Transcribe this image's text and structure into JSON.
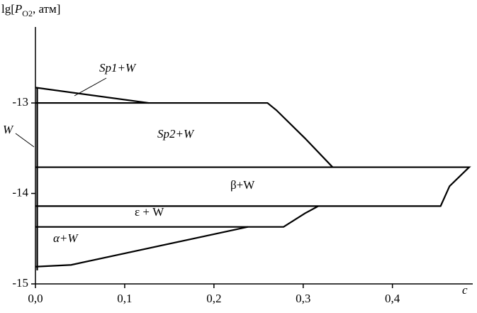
{
  "chart_data": {
    "type": "line",
    "y_label": [
      "lg[",
      "P",
      "O2",
      ", атм]"
    ],
    "x_label": "c",
    "xlim": [
      0,
      0.49
    ],
    "ylim": [
      -15,
      -12.16
    ],
    "xticks": [
      {
        "value": 0,
        "label": "0,0"
      },
      {
        "value": 0.1,
        "label": "0,1"
      },
      {
        "value": 0.2,
        "label": "0,2"
      },
      {
        "value": 0.3,
        "label": "0,3"
      },
      {
        "value": 0.4,
        "label": "0,4"
      }
    ],
    "yticks": [
      -15,
      -14,
      -13
    ],
    "color": "#000000",
    "lines": [
      {
        "x": [
          0,
          0.127
        ],
        "y": [
          -12.83,
          -13.0
        ]
      },
      {
        "x": [
          0,
          0.26,
          0.27,
          0.302,
          0.333
        ],
        "y": [
          -13.0,
          -13.0,
          -13.08,
          -13.39,
          -13.71
        ]
      },
      {
        "x": [
          0.002,
          0.002
        ],
        "y": [
          -12.83,
          -14.85
        ]
      },
      {
        "x": [
          0,
          0.486,
          0.464,
          0.454,
          0
        ],
        "y": [
          -13.71,
          -13.71,
          -13.92,
          -14.14,
          -14.14
        ]
      },
      {
        "x": [
          0,
          0.278,
          0.302,
          0.317
        ],
        "y": [
          -14.37,
          -14.37,
          -14.22,
          -14.14
        ]
      },
      {
        "x": [
          0,
          0.04,
          0.238
        ],
        "y": [
          -14.81,
          -14.79,
          -14.37
        ]
      }
    ],
    "annotations": [
      "Sp1+W",
      "Sp2+W",
      "β+W",
      "ε + W",
      "α+W",
      "W"
    ]
  }
}
